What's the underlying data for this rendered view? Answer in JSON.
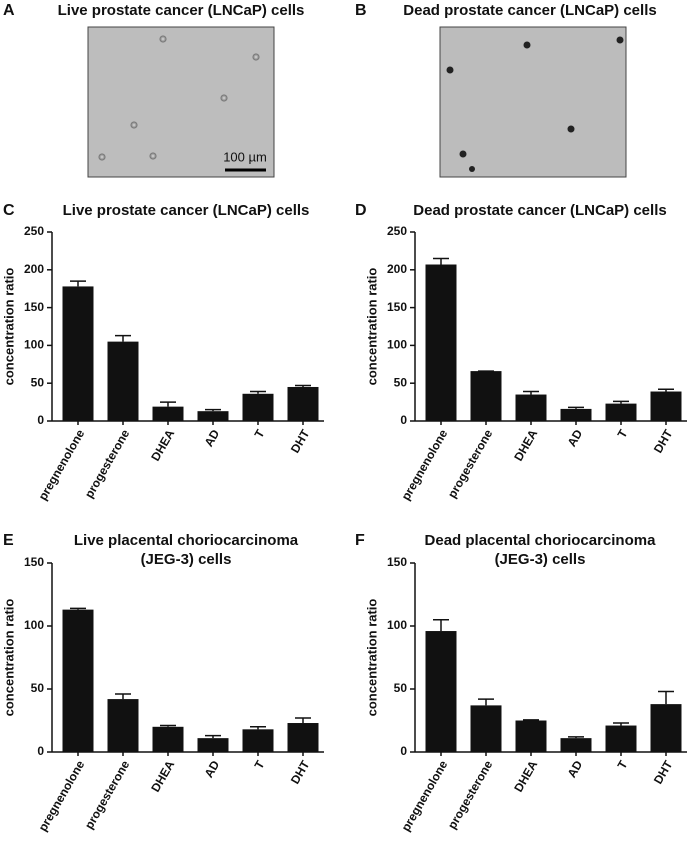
{
  "image_panels": [
    {
      "panel_label": "A",
      "title": "Live prostate cancer (LNCaP) cells",
      "scale_label": "100 µm"
    },
    {
      "panel_label": "B",
      "title": "Dead prostate cancer (LNCaP) cells"
    }
  ],
  "chart_data": [
    {
      "type": "bar",
      "panel_label": "C",
      "title": [
        "Live prostate cancer (LNCaP) cells"
      ],
      "y_label": "concentration ratio",
      "categories": [
        "pregnenolone",
        "progesterone",
        "DHEA",
        "AD",
        "T",
        "DHT"
      ],
      "values": [
        178,
        105,
        19,
        13,
        36,
        45
      ],
      "errors": [
        7,
        8,
        6,
        2,
        3,
        2
      ],
      "color": "#111111",
      "ylim": [
        0,
        250
      ],
      "yticks": [
        0,
        50,
        100,
        150,
        200,
        250
      ]
    },
    {
      "type": "bar",
      "panel_label": "D",
      "title": [
        "Dead prostate cancer (LNCaP) cells"
      ],
      "y_label": "concentration ratio",
      "categories": [
        "pregnenolone",
        "progesterone",
        "DHEA",
        "AD",
        "T",
        "DHT"
      ],
      "values": [
        207,
        66,
        35,
        16,
        23,
        39
      ],
      "errors": [
        8,
        0,
        4,
        2,
        3,
        3
      ],
      "color": "#111111",
      "ylim": [
        0,
        250
      ],
      "yticks": [
        0,
        50,
        100,
        150,
        200,
        250
      ]
    },
    {
      "type": "bar",
      "panel_label": "E",
      "title": [
        "Live placental choriocarcinoma",
        "(JEG-3) cells"
      ],
      "y_label": "concentration ratio",
      "categories": [
        "pregnenolone",
        "progesterone",
        "DHEA",
        "AD",
        "T",
        "DHT"
      ],
      "values": [
        113,
        42,
        20,
        11,
        18,
        23
      ],
      "errors": [
        1,
        4,
        1,
        2,
        2,
        4
      ],
      "color": "#111111",
      "ylim": [
        0,
        150
      ],
      "yticks": [
        0,
        50,
        100,
        150
      ]
    },
    {
      "type": "bar",
      "panel_label": "F",
      "title": [
        "Dead placental choriocarcinoma",
        "(JEG-3) cells"
      ],
      "y_label": "concentration ratio",
      "categories": [
        "pregnenolone",
        "progesterone",
        "DHEA",
        "AD",
        "T",
        "DHT"
      ],
      "values": [
        96,
        37,
        25,
        11,
        21,
        38
      ],
      "errors": [
        9,
        5,
        0.5,
        1,
        2,
        10
      ],
      "color": "#111111",
      "ylim": [
        0,
        150
      ],
      "yticks": [
        0,
        50,
        100,
        150
      ]
    }
  ]
}
